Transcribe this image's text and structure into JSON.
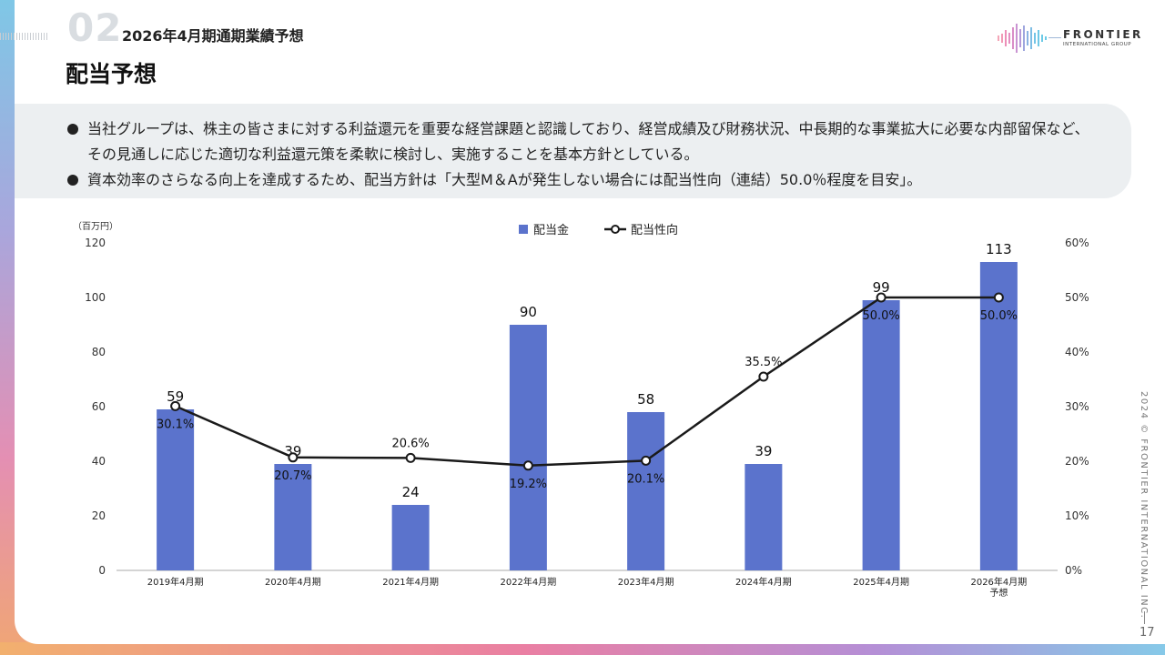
{
  "header": {
    "section_number": "02",
    "section_title": "2026年4月期通期業績予想",
    "page_title": "配当予想",
    "logo_name": "FRONTIER",
    "logo_sub": "INTERNATIONAL GROUP"
  },
  "policy": {
    "bullets": [
      "当社グループは、株主の皆さまに対する利益還元を重要な経営課題と認識しており、経営成績及び財務状況、中長期的な事業拡大に必要な内部留保など、その見通しに応じた適切な利益還元策を柔軟に検討し、実施することを基本方針としている。",
      "資本効率のさらなる向上を達成するため、配当方針は「大型M＆Aが発生しない場合には配当性向（連結）50.0％程度を目安」。"
    ]
  },
  "footer": {
    "copyright": "2024 © FRONTIER INTERNATIONAL INC.",
    "page_number": "17"
  },
  "chart_data": {
    "type": "bar",
    "unit_label": "（百万円）",
    "categories": [
      "2019年4月期",
      "2020年4月期",
      "2021年4月期",
      "2022年4月期",
      "2023年4月期",
      "2024年4月期",
      "2025年4月期",
      "2026年4月期"
    ],
    "category_sublabels": [
      "",
      "",
      "",
      "",
      "",
      "",
      "",
      "予想"
    ],
    "series": [
      {
        "name": "配当金",
        "type": "bar",
        "axis": "left",
        "color": "#5b73cc",
        "values": [
          59,
          39,
          24,
          90,
          58,
          39,
          99,
          113
        ]
      },
      {
        "name": "配当性向",
        "type": "line",
        "axis": "right",
        "color": "#1a1a1a",
        "values": [
          30.1,
          20.7,
          20.6,
          19.2,
          20.1,
          35.5,
          50.0,
          50.0
        ],
        "labels": [
          "30.1%",
          "20.7%",
          "20.6%",
          "19.2%",
          "20.1%",
          "35.5%",
          "50.0%",
          "50.0%"
        ]
      }
    ],
    "y_left": {
      "min": 0,
      "max": 120,
      "ticks": [
        "0",
        "20",
        "40",
        "60",
        "80",
        "100",
        "120"
      ]
    },
    "y_right": {
      "min": 0,
      "max": 60,
      "ticks": [
        "0%",
        "10%",
        "20%",
        "30%",
        "40%",
        "50%",
        "60%"
      ]
    },
    "legend_position": "top-center",
    "grid": false
  }
}
